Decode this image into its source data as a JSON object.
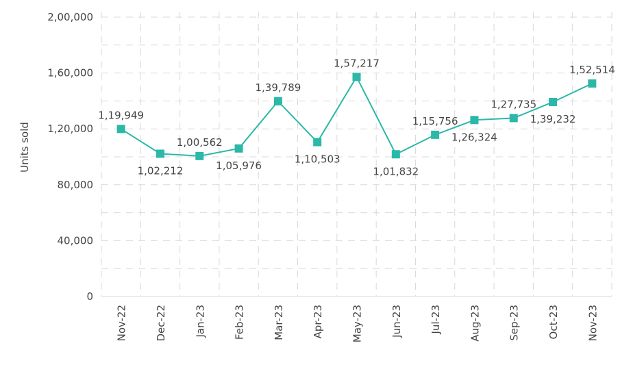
{
  "chart_data": {
    "type": "line",
    "title": "",
    "xlabel": "",
    "ylabel": "Units sold",
    "ylim": [
      0,
      200000
    ],
    "yticks": [
      0,
      40000,
      80000,
      120000,
      160000,
      200000
    ],
    "ytick_labels": [
      "0",
      "40,000",
      "80,000",
      "1,20,000",
      "1,60,000",
      "2,00,000"
    ],
    "grid": true,
    "categories": [
      "Nov-22",
      "Dec-22",
      "Jan-23",
      "Feb-23",
      "Mar-23",
      "Apr-23",
      "May-23",
      "Jun-23",
      "Jul-23",
      "Aug-23",
      "Sep-23",
      "Oct-23",
      "Nov-23"
    ],
    "series": [
      {
        "name": "Units sold",
        "color": "#2BB8A8",
        "values": [
          119949,
          102212,
          100562,
          105976,
          139789,
          110503,
          157217,
          101832,
          115756,
          126324,
          127735,
          139232,
          152514
        ],
        "labels": [
          "1,19,949",
          "1,02,212",
          "1,00,562",
          "1,05,976",
          "1,39,789",
          "1,10,503",
          "1,57,217",
          "1,01,832",
          "1,15,756",
          "1,26,324",
          "1,27,735",
          "1,39,232",
          "1,52,514"
        ],
        "label_positions": [
          "above",
          "below",
          "above",
          "below",
          "above",
          "below",
          "above",
          "below",
          "above",
          "below",
          "above",
          "below",
          "above"
        ]
      }
    ]
  }
}
